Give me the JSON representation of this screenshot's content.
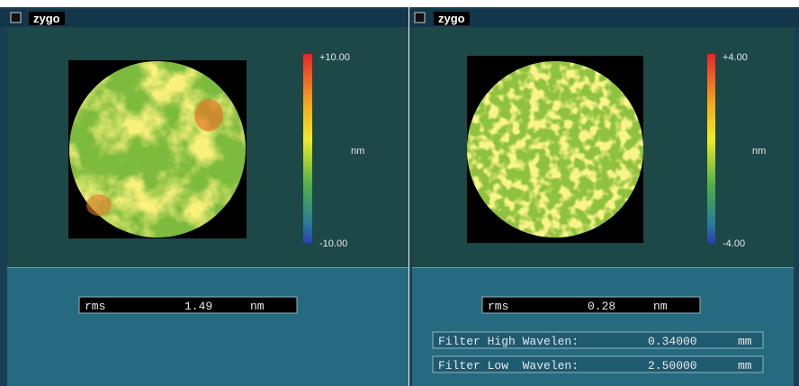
{
  "panels": [
    {
      "logo": "zygo",
      "scale_max": "+10.00",
      "scale_min": "-10.00",
      "scale_unit": "nm",
      "rms": {
        "label": "rms",
        "value": "1.49",
        "unit": "nm"
      }
    },
    {
      "logo": "zygo",
      "scale_max": "+4.00",
      "scale_min": "-4.00",
      "scale_unit": "nm",
      "rms": {
        "label": "rms",
        "value": "0.28",
        "unit": "nm"
      },
      "filters": [
        {
          "label": "Filter High Wavelen:",
          "value": "0.34000",
          "unit": "mm"
        },
        {
          "label": "Filter Low  Wavelen:",
          "value": "2.50000",
          "unit": "mm"
        }
      ]
    }
  ]
}
